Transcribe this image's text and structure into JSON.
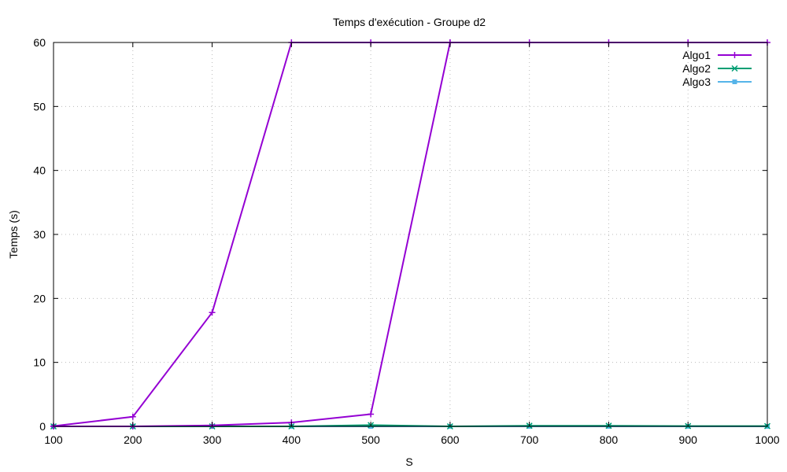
{
  "chart_data": {
    "type": "line",
    "title": "Temps d'exécution - Groupe d2",
    "xlabel": "S",
    "ylabel": "Temps (s)",
    "xlim": [
      100,
      1000
    ],
    "ylim": [
      0,
      60
    ],
    "xticks": [
      100,
      200,
      300,
      400,
      500,
      600,
      700,
      800,
      900,
      1000
    ],
    "yticks": [
      0,
      10,
      20,
      30,
      40,
      50,
      60
    ],
    "grid": true,
    "legend_position": "top-right",
    "series": [
      {
        "name": "Algo1",
        "color": "#9400d3",
        "marker": "plus",
        "x": [
          100,
          200,
          300,
          400,
          500,
          600,
          700,
          800,
          900,
          1000
        ],
        "values": [
          0.05,
          1.5,
          17.8,
          60,
          60,
          60,
          60,
          60,
          60,
          60
        ]
      },
      {
        "name": "Algo1",
        "color": "#9400d3",
        "marker": "plus",
        "legend": false,
        "x": [
          100,
          200,
          300,
          400,
          500,
          600
        ],
        "values": [
          0.0,
          0.0,
          0.15,
          0.6,
          1.9,
          60
        ]
      },
      {
        "name": "Algo2",
        "color": "#009e73",
        "marker": "cross",
        "x": [
          100,
          200,
          300,
          400,
          500,
          600,
          700,
          800,
          900,
          1000
        ],
        "values": [
          0.0,
          0.0,
          0.0,
          0.0,
          0.2,
          0.0,
          0.1,
          0.1,
          0.05,
          0.05
        ]
      },
      {
        "name": "Algo3",
        "color": "#56b4e9",
        "marker": "square",
        "x": [
          100,
          200,
          300,
          400,
          500,
          600,
          700,
          800,
          900,
          1000
        ],
        "values": [
          0.0,
          0.0,
          0.0,
          0.0,
          0.0,
          0.0,
          0.0,
          0.0,
          0.0,
          0.0
        ]
      }
    ]
  }
}
